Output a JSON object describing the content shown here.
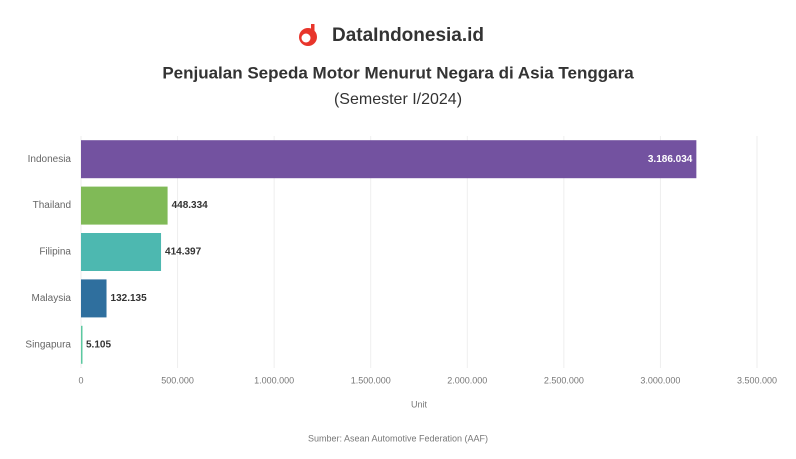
{
  "brand": "DataIndonesia.id",
  "chart_data": {
    "type": "hbar",
    "title": "Penjualan Sepeda Motor Menurut Negara di Asia Tenggara",
    "subtitle": "(Semester I/2024)",
    "categories": [
      "Indonesia",
      "Thailand",
      "Filipina",
      "Malaysia",
      "Singapura"
    ],
    "values": [
      3186034,
      448334,
      414397,
      132135,
      5105
    ],
    "value_labels": [
      "3.186.034",
      "448.334",
      "414.397",
      "132.135",
      "5.105"
    ],
    "colors": [
      "#7352a0",
      "#80ba57",
      "#4db8b0",
      "#2f6f9e",
      "#5cc8a0"
    ],
    "xlim": [
      0,
      3500000
    ],
    "xticks": [
      0,
      {
        "value": 500000,
        "label": "500.000"
      },
      {
        "value": 1000000,
        "label": "1.000.000"
      },
      {
        "value": 1500000,
        "label": "1.500.000"
      },
      {
        "value": 2000000,
        "label": "2.000.000"
      },
      {
        "value": 2500000,
        "label": "2.500.000"
      },
      {
        "value": 3000000,
        "label": "3.000.000"
      },
      {
        "value": 3500000,
        "label": "3.500.000"
      }
    ],
    "xlabel": "Unit",
    "grid": true,
    "source": "Sumber: Asean Automotive Federation (AAF)"
  }
}
